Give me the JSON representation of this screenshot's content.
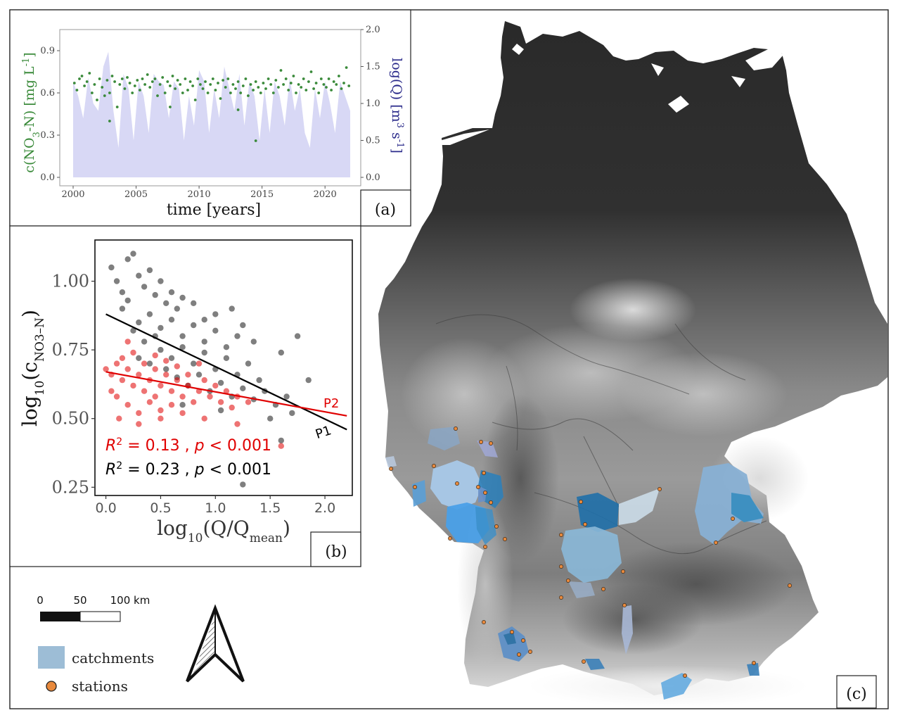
{
  "panel_labels": {
    "a": "(a)",
    "b": "(b)",
    "c": "(c)"
  },
  "legend": {
    "scale_labels": [
      "0",
      "50",
      "100 km"
    ],
    "catchments_label": "catchments",
    "stations_label": "stations",
    "catchment_color": "#9dbdd6",
    "station_color": "#e8893c"
  },
  "colors": {
    "nitrate": "#3a8a3a",
    "discharge": "#d8d8f5",
    "discharge_axis": "#2a2a8a",
    "p1": "#000000",
    "p2": "#e00000"
  },
  "chart_data": [
    {
      "panel": "a",
      "type": "line",
      "xlabel": "time [years]",
      "ylabel_left": "c(NO3-N) [mg L-1]",
      "ylabel_right": "log(Q) [m3 s-1]",
      "xlim": [
        2000,
        2022
      ],
      "ylim_left": [
        0,
        1.05
      ],
      "ylim_right": [
        0,
        2.0
      ],
      "x_ticks": [
        2000,
        2005,
        2010,
        2015,
        2020
      ],
      "y_ticks_left": [
        "0.0",
        "0.3",
        "0.6",
        "0.9"
      ],
      "y_ticks_right": [
        "0.0",
        "0.5",
        "1.0",
        "1.5",
        "2.0"
      ],
      "series": [
        {
          "kind": "area",
          "axis": "right",
          "x": [
            2000,
            2000.4,
            2000.8,
            2001.2,
            2001.6,
            2002,
            2002.4,
            2002.8,
            2003.2,
            2003.6,
            2004,
            2004.4,
            2004.8,
            2005.2,
            2005.6,
            2006,
            2006.4,
            2006.8,
            2007.2,
            2007.6,
            2008,
            2008.4,
            2008.8,
            2009.2,
            2009.6,
            2010,
            2010.4,
            2010.8,
            2011.2,
            2011.6,
            2012,
            2012.4,
            2012.8,
            2013.2,
            2013.6,
            2014,
            2014.4,
            2014.8,
            2015.2,
            2015.6,
            2016,
            2016.4,
            2016.8,
            2017.2,
            2017.6,
            2018,
            2018.4,
            2018.8,
            2019.2,
            2019.6,
            2020,
            2020.4,
            2020.8,
            2021.2,
            2021.6,
            2022
          ],
          "y": [
            1.3,
            1.1,
            0.8,
            1.35,
            1.0,
            0.9,
            1.5,
            1.7,
            0.9,
            0.4,
            1.4,
            1.2,
            0.5,
            1.3,
            1.1,
            0.6,
            1.4,
            1.3,
            1.25,
            0.8,
            1.3,
            1.2,
            0.5,
            1.1,
            0.7,
            1.45,
            1.3,
            0.6,
            1.2,
            0.8,
            1.5,
            1.2,
            0.9,
            1.4,
            0.7,
            1.3,
            1.1,
            0.5,
            1.2,
            0.6,
            1.3,
            1.1,
            0.7,
            1.35,
            0.9,
            1.2,
            0.6,
            0.4,
            1.2,
            0.8,
            1.3,
            1.0,
            0.6,
            1.3,
            1.1,
            0.9
          ]
        },
        {
          "kind": "scatter",
          "axis": "left",
          "x": [
            2000.1,
            2000.3,
            2000.5,
            2000.7,
            2000.9,
            2001.1,
            2001.3,
            2001.5,
            2001.7,
            2001.9,
            2002.1,
            2002.3,
            2002.5,
            2002.7,
            2002.9,
            2003.1,
            2003.3,
            2003.5,
            2003.7,
            2003.9,
            2004.1,
            2004.3,
            2004.5,
            2004.7,
            2004.9,
            2005.1,
            2005.3,
            2005.5,
            2005.7,
            2005.9,
            2006.1,
            2006.3,
            2006.5,
            2006.7,
            2006.9,
            2007.1,
            2007.3,
            2007.5,
            2007.7,
            2007.9,
            2008.1,
            2008.3,
            2008.5,
            2008.7,
            2008.9,
            2009.1,
            2009.3,
            2009.5,
            2009.7,
            2009.9,
            2010.1,
            2010.3,
            2010.5,
            2010.7,
            2010.9,
            2011.1,
            2011.3,
            2011.5,
            2011.7,
            2011.9,
            2012.1,
            2012.3,
            2012.5,
            2012.7,
            2012.9,
            2013.1,
            2013.3,
            2013.5,
            2013.7,
            2013.9,
            2014.1,
            2014.3,
            2014.5,
            2014.7,
            2014.9,
            2015.1,
            2015.3,
            2015.5,
            2015.7,
            2015.9,
            2016.1,
            2016.3,
            2016.5,
            2016.7,
            2016.9,
            2017.1,
            2017.3,
            2017.5,
            2017.7,
            2017.9,
            2018.1,
            2018.3,
            2018.5,
            2018.7,
            2018.9,
            2019.1,
            2019.3,
            2019.5,
            2019.7,
            2019.9,
            2020.1,
            2020.3,
            2020.5,
            2020.7,
            2020.9,
            2021.1,
            2021.3,
            2021.5,
            2021.7,
            2021.9,
            2002.9,
            2014.5,
            2013.1,
            2007.7
          ],
          "y": [
            0.67,
            0.62,
            0.7,
            0.72,
            0.65,
            0.68,
            0.74,
            0.6,
            0.66,
            0.55,
            0.7,
            0.64,
            0.58,
            0.69,
            0.6,
            0.72,
            0.68,
            0.5,
            0.66,
            0.7,
            0.63,
            0.71,
            0.67,
            0.6,
            0.65,
            0.69,
            0.62,
            0.7,
            0.66,
            0.73,
            0.64,
            0.68,
            0.7,
            0.58,
            0.66,
            0.71,
            0.6,
            0.68,
            0.65,
            0.72,
            0.63,
            0.69,
            0.66,
            0.6,
            0.7,
            0.62,
            0.68,
            0.65,
            0.55,
            0.7,
            0.66,
            0.63,
            0.68,
            0.6,
            0.66,
            0.7,
            0.62,
            0.67,
            0.56,
            0.69,
            0.64,
            0.7,
            0.6,
            0.66,
            0.63,
            0.68,
            0.6,
            0.65,
            0.7,
            0.58,
            0.66,
            0.62,
            0.68,
            0.64,
            0.6,
            0.67,
            0.63,
            0.7,
            0.66,
            0.6,
            0.69,
            0.64,
            0.76,
            0.66,
            0.7,
            0.62,
            0.67,
            0.72,
            0.6,
            0.66,
            0.64,
            0.7,
            0.62,
            0.68,
            0.75,
            0.63,
            0.67,
            0.6,
            0.7,
            0.66,
            0.64,
            0.7,
            0.62,
            0.68,
            0.66,
            0.72,
            0.63,
            0.67,
            0.78,
            0.65,
            0.4,
            0.26,
            0.48,
            0.5
          ]
        }
      ]
    },
    {
      "panel": "b",
      "type": "scatter",
      "xlabel": "log10(Q/Qmean)",
      "ylabel": "log10(cNO3-N)",
      "xlim": [
        -0.1,
        2.25
      ],
      "ylim": [
        0.22,
        1.15
      ],
      "x_ticks": [
        "0.0",
        "0.5",
        "1.0",
        "1.5",
        "2.0"
      ],
      "y_ticks": [
        "0.25",
        "0.50",
        "0.75",
        "1.00"
      ],
      "annotations": {
        "p2_label": "P2",
        "p1_label": "P1",
        "r2_symbol": "R",
        "r2_exponent": "2",
        "r2_p2_text": " = 0.13 , ",
        "p_symbol": "p",
        "p2_text": " < 0.001",
        "r2_p1_text": " = 0.23 , ",
        "p1_text": " < 0.001"
      },
      "series": [
        {
          "name": "P1",
          "color": "#000000",
          "fit": {
            "x": [
              0.0,
              2.2
            ],
            "y": [
              0.88,
              0.46
            ]
          },
          "points": [
            [
              0.05,
              1.05
            ],
            [
              0.1,
              1.0
            ],
            [
              0.15,
              0.96
            ],
            [
              0.2,
              1.08
            ],
            [
              0.25,
              1.1
            ],
            [
              0.2,
              0.93
            ],
            [
              0.3,
              1.02
            ],
            [
              0.35,
              0.98
            ],
            [
              0.4,
              1.04
            ],
            [
              0.45,
              0.95
            ],
            [
              0.5,
              1.0
            ],
            [
              0.55,
              0.92
            ],
            [
              0.6,
              0.96
            ],
            [
              0.65,
              0.9
            ],
            [
              0.7,
              0.94
            ],
            [
              0.3,
              0.85
            ],
            [
              0.4,
              0.88
            ],
            [
              0.5,
              0.83
            ],
            [
              0.6,
              0.86
            ],
            [
              0.7,
              0.8
            ],
            [
              0.8,
              0.84
            ],
            [
              0.9,
              0.78
            ],
            [
              1.0,
              0.82
            ],
            [
              1.1,
              0.76
            ],
            [
              1.2,
              0.8
            ],
            [
              0.5,
              0.75
            ],
            [
              0.6,
              0.72
            ],
            [
              0.7,
              0.76
            ],
            [
              0.8,
              0.7
            ],
            [
              0.9,
              0.74
            ],
            [
              1.0,
              0.68
            ],
            [
              1.1,
              0.72
            ],
            [
              1.2,
              0.66
            ],
            [
              1.3,
              0.7
            ],
            [
              1.4,
              0.64
            ],
            [
              0.4,
              0.7
            ],
            [
              0.55,
              0.68
            ],
            [
              0.65,
              0.65
            ],
            [
              0.75,
              0.62
            ],
            [
              0.85,
              0.66
            ],
            [
              0.95,
              0.6
            ],
            [
              1.05,
              0.63
            ],
            [
              1.15,
              0.58
            ],
            [
              1.25,
              0.61
            ],
            [
              1.35,
              0.57
            ],
            [
              1.45,
              0.6
            ],
            [
              1.55,
              0.55
            ],
            [
              1.65,
              0.58
            ],
            [
              1.75,
              0.8
            ],
            [
              1.6,
              0.74
            ],
            [
              1.35,
              0.78
            ],
            [
              1.25,
              0.84
            ],
            [
              1.0,
              0.88
            ],
            [
              0.8,
              0.92
            ],
            [
              0.15,
              0.9
            ],
            [
              0.25,
              0.82
            ],
            [
              0.35,
              0.78
            ],
            [
              0.45,
              0.8
            ],
            [
              0.9,
              0.86
            ],
            [
              1.15,
              0.9
            ],
            [
              1.5,
              0.5
            ],
            [
              1.6,
              0.42
            ],
            [
              1.7,
              0.52
            ],
            [
              1.85,
              0.64
            ],
            [
              1.05,
              0.53
            ],
            [
              1.25,
              0.26
            ],
            [
              0.7,
              0.55
            ],
            [
              0.3,
              0.72
            ]
          ]
        },
        {
          "name": "P2",
          "color": "#e00000",
          "fit": {
            "x": [
              0.0,
              2.2
            ],
            "y": [
              0.67,
              0.51
            ]
          },
          "points": [
            [
              0.0,
              0.68
            ],
            [
              0.05,
              0.66
            ],
            [
              0.1,
              0.7
            ],
            [
              0.15,
              0.64
            ],
            [
              0.2,
              0.68
            ],
            [
              0.25,
              0.62
            ],
            [
              0.3,
              0.66
            ],
            [
              0.35,
              0.6
            ],
            [
              0.4,
              0.64
            ],
            [
              0.45,
              0.58
            ],
            [
              0.5,
              0.62
            ],
            [
              0.55,
              0.66
            ],
            [
              0.6,
              0.6
            ],
            [
              0.65,
              0.64
            ],
            [
              0.7,
              0.58
            ],
            [
              0.75,
              0.62
            ],
            [
              0.8,
              0.56
            ],
            [
              0.85,
              0.6
            ],
            [
              0.9,
              0.64
            ],
            [
              0.95,
              0.58
            ],
            [
              1.0,
              0.62
            ],
            [
              1.05,
              0.56
            ],
            [
              1.1,
              0.6
            ],
            [
              1.15,
              0.54
            ],
            [
              1.2,
              0.58
            ],
            [
              1.3,
              0.56
            ],
            [
              0.1,
              0.58
            ],
            [
              0.2,
              0.55
            ],
            [
              0.3,
              0.52
            ],
            [
              0.4,
              0.56
            ],
            [
              0.5,
              0.53
            ],
            [
              0.6,
              0.55
            ],
            [
              0.7,
              0.52
            ],
            [
              0.15,
              0.72
            ],
            [
              0.25,
              0.74
            ],
            [
              0.35,
              0.7
            ],
            [
              0.45,
              0.73
            ],
            [
              0.55,
              0.71
            ],
            [
              0.65,
              0.69
            ],
            [
              0.2,
              0.78
            ],
            [
              0.05,
              0.6
            ],
            [
              0.12,
              0.5
            ],
            [
              0.3,
              0.48
            ],
            [
              0.5,
              0.5
            ],
            [
              0.9,
              0.5
            ],
            [
              1.2,
              0.48
            ],
            [
              1.6,
              0.4
            ],
            [
              0.45,
              0.68
            ],
            [
              0.75,
              0.66
            ],
            [
              0.85,
              0.7
            ]
          ]
        }
      ]
    }
  ],
  "map": {
    "stations": [
      [
        648,
        609
      ],
      [
        684,
        628
      ],
      [
        698,
        630
      ],
      [
        617,
        662
      ],
      [
        590,
        692
      ],
      [
        556,
        666
      ],
      [
        650,
        687
      ],
      [
        688,
        672
      ],
      [
        680,
        692
      ],
      [
        690,
        700
      ],
      [
        698,
        714
      ],
      [
        706,
        748
      ],
      [
        718,
        766
      ],
      [
        640,
        765
      ],
      [
        690,
        777
      ],
      [
        798,
        760
      ],
      [
        832,
        745
      ],
      [
        826,
        713
      ],
      [
        938,
        695
      ],
      [
        1042,
        737
      ],
      [
        1018,
        771
      ],
      [
        798,
        805
      ],
      [
        808,
        825
      ],
      [
        886,
        812
      ],
      [
        858,
        837
      ],
      [
        798,
        849
      ],
      [
        888,
        860
      ],
      [
        1123,
        832
      ],
      [
        688,
        884
      ],
      [
        728,
        898
      ],
      [
        744,
        910
      ],
      [
        738,
        930
      ],
      [
        754,
        926
      ],
      [
        830,
        940
      ],
      [
        974,
        960
      ],
      [
        1072,
        942
      ]
    ]
  }
}
